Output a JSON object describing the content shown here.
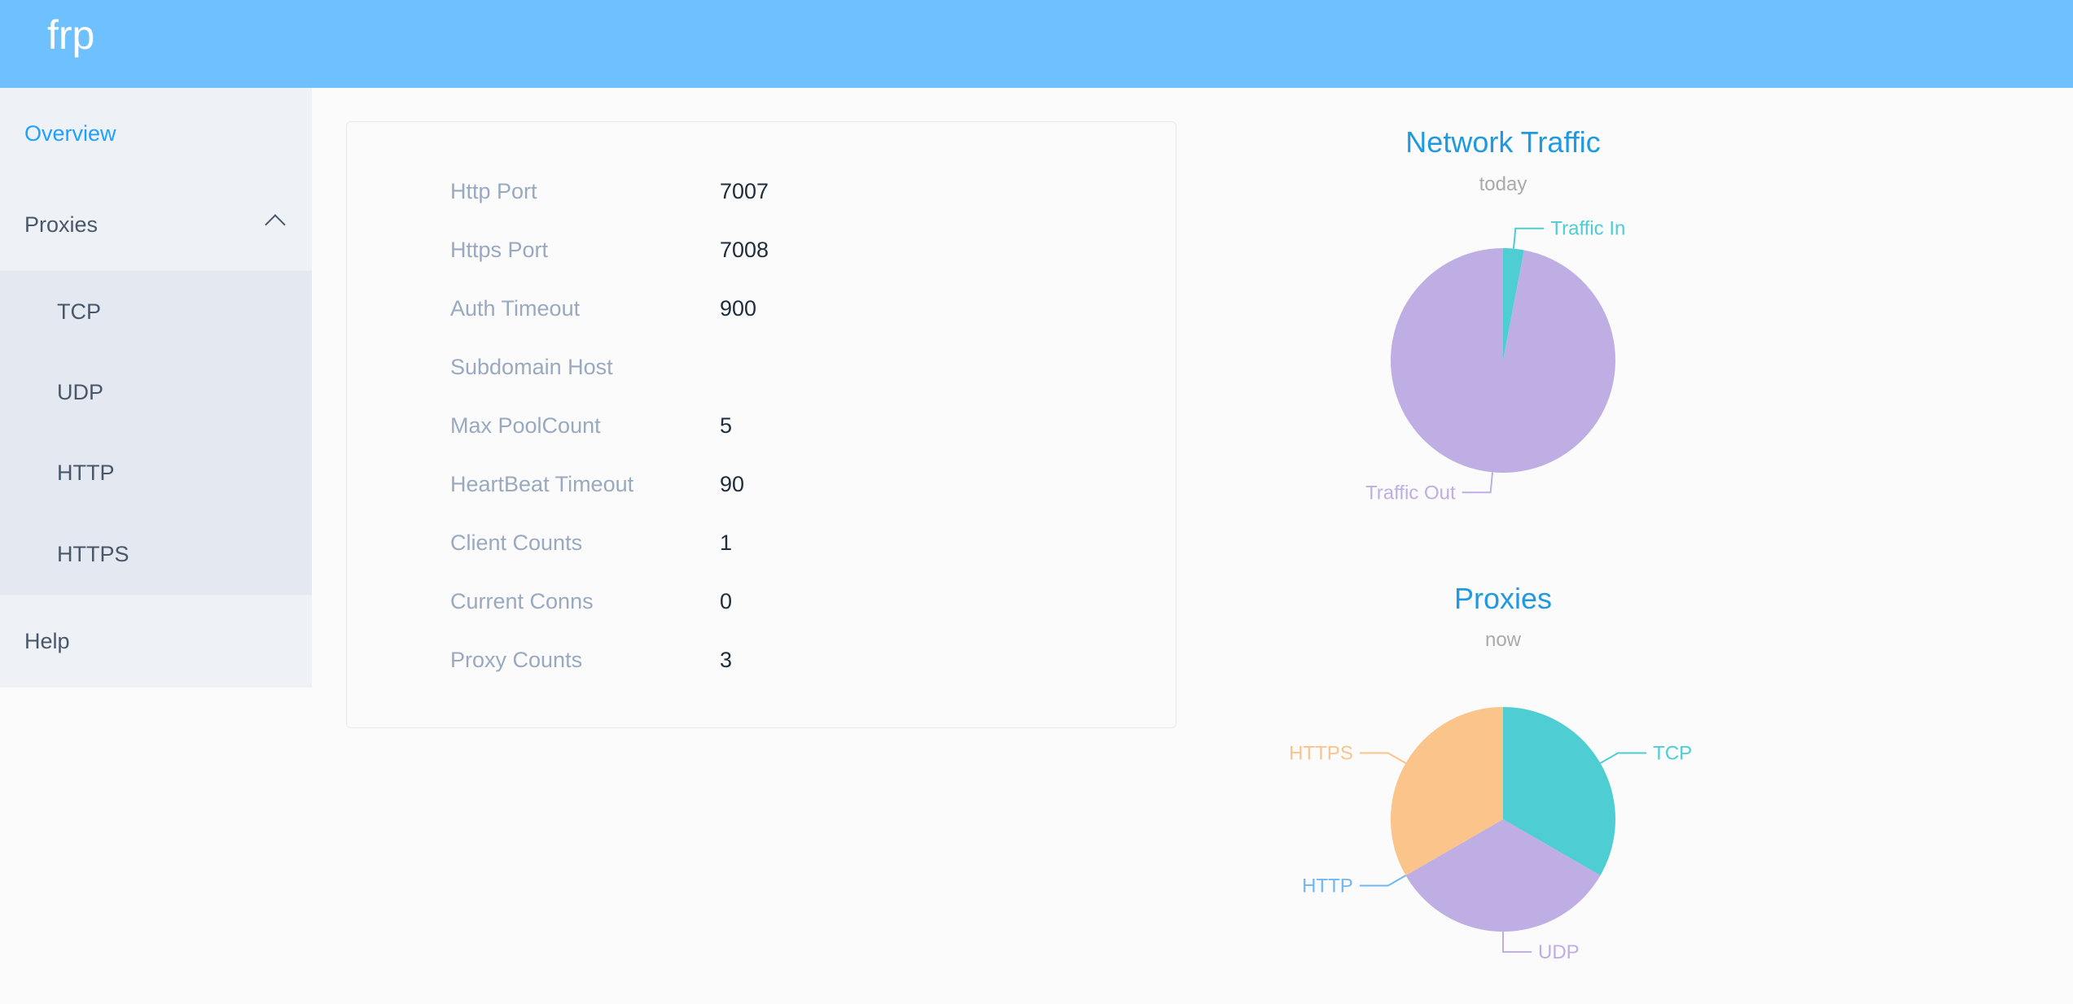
{
  "header": {
    "brand": "frp"
  },
  "sidebar": {
    "overview": "Overview",
    "proxies": "Proxies",
    "proxy_types": [
      "TCP",
      "UDP",
      "HTTP",
      "HTTPS"
    ],
    "help": "Help"
  },
  "server_info": [
    {
      "label": "Http Port",
      "value": "7007"
    },
    {
      "label": "Https Port",
      "value": "7008"
    },
    {
      "label": "Auth Timeout",
      "value": "900"
    },
    {
      "label": "Subdomain Host",
      "value": ""
    },
    {
      "label": "Max PoolCount",
      "value": "5"
    },
    {
      "label": "HeartBeat Timeout",
      "value": "90"
    },
    {
      "label": "Client Counts",
      "value": "1"
    },
    {
      "label": "Current Conns",
      "value": "0"
    },
    {
      "label": "Proxy Counts",
      "value": "3"
    }
  ],
  "colors": {
    "header": "#6fc0ff",
    "accent": "#20a0ff",
    "teal": "#4ecdd2",
    "purple": "#bfaee3",
    "orange": "#fac48b",
    "blue": "#6fb8f5"
  },
  "chart_data": [
    {
      "type": "pie",
      "title": "Network Traffic",
      "subtitle": "today",
      "slices": [
        {
          "name": "Traffic In",
          "value": 3,
          "color": "#4ecdd2"
        },
        {
          "name": "Traffic Out",
          "value": 97,
          "color": "#bfaee3"
        }
      ]
    },
    {
      "type": "pie",
      "title": "Proxies",
      "subtitle": "now",
      "slices": [
        {
          "name": "TCP",
          "value": 1,
          "color": "#4ecdd2"
        },
        {
          "name": "UDP",
          "value": 1,
          "color": "#bfaee3"
        },
        {
          "name": "HTTP",
          "value": 0,
          "color": "#6fb8f5"
        },
        {
          "name": "HTTPS",
          "value": 1,
          "color": "#fac48b"
        }
      ]
    }
  ]
}
